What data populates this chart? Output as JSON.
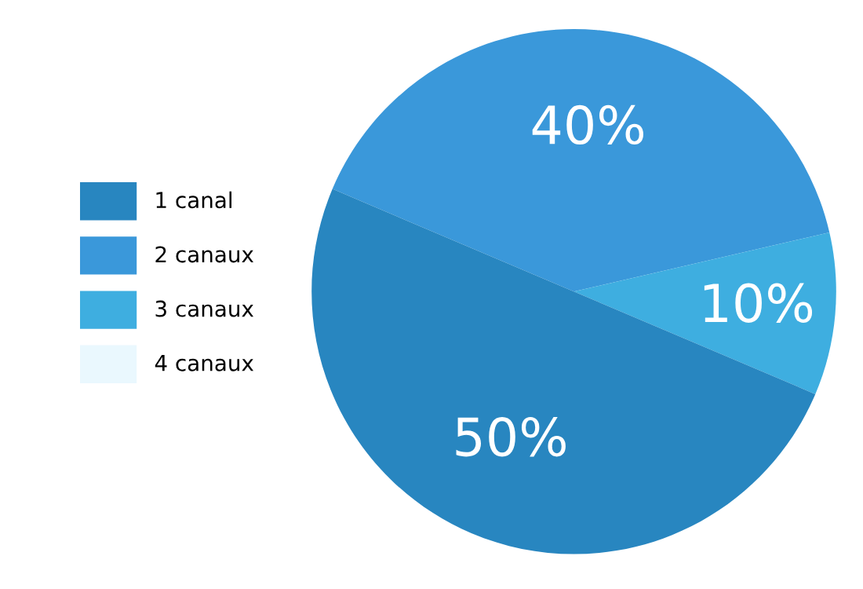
{
  "chart_data": {
    "type": "pie",
    "categories": [
      "1 canal",
      "2 canaux",
      "3 canaux",
      "4 canaux"
    ],
    "values": [
      50,
      40,
      10,
      0
    ],
    "colors": [
      "#2886c0",
      "#3a98da",
      "#3eaee0",
      "#eaf8fe"
    ],
    "value_labels": [
      "50%",
      "40%",
      "10%",
      null
    ],
    "legend": "left"
  }
}
